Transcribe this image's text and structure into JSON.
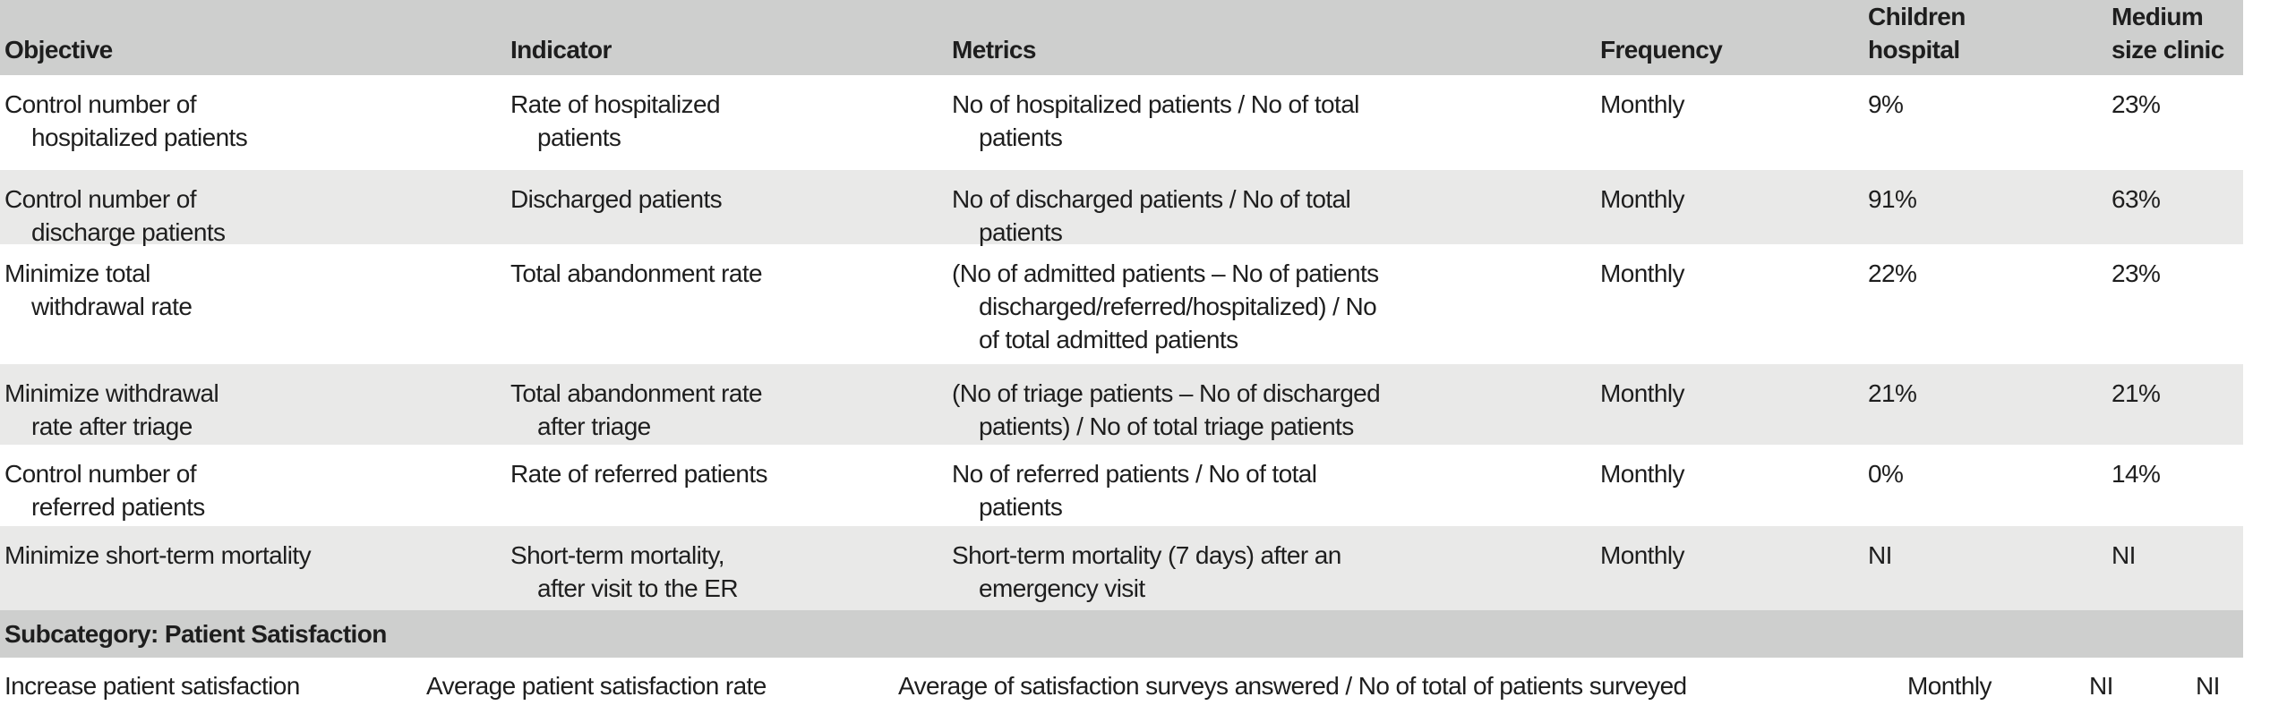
{
  "colors": {
    "header_band": "#cecfce",
    "zebra_band": "#e9e9e8",
    "row_white": "#ffffff",
    "text": "#1e1e1e"
  },
  "header": {
    "objective": "Objective",
    "indicator": "Indicator",
    "metrics": "Metrics",
    "frequency": "Frequency",
    "children_hospital": [
      "Children",
      "hospital"
    ],
    "medium_size_clinic": [
      "Medium",
      "size clinic"
    ]
  },
  "rows": [
    {
      "objective": [
        "Control number of",
        "hospitalized patients"
      ],
      "indicator": [
        "Rate of hospitalized",
        "patients"
      ],
      "metrics": [
        "No of hospitalized patients / No of total",
        "patients"
      ],
      "frequency": "Monthly",
      "children_hospital": "9%",
      "medium_size_clinic": "23%"
    },
    {
      "objective": [
        "Control number of",
        "discharge patients"
      ],
      "indicator": [
        "Discharged patients"
      ],
      "metrics": [
        "No of discharged patients / No of total",
        "patients"
      ],
      "frequency": "Monthly",
      "children_hospital": "91%",
      "medium_size_clinic": "63%"
    },
    {
      "objective": [
        "Minimize total",
        "withdrawal rate"
      ],
      "indicator": [
        "Total abandonment rate"
      ],
      "metrics": [
        "(No of admitted patients – No of patients",
        "discharged/referred/hospitalized) / No",
        "of total admitted patients"
      ],
      "frequency": "Monthly",
      "children_hospital": "22%",
      "medium_size_clinic": "23%"
    },
    {
      "objective": [
        "Minimize withdrawal",
        "rate after triage"
      ],
      "indicator": [
        "Total abandonment rate",
        "after triage"
      ],
      "metrics": [
        "(No of triage patients – No of discharged",
        "patients) / No of total triage patients"
      ],
      "frequency": "Monthly",
      "children_hospital": "21%",
      "medium_size_clinic": "21%"
    },
    {
      "objective": [
        "Control number of",
        "referred patients"
      ],
      "indicator": [
        "Rate of referred patients"
      ],
      "metrics": [
        "No of referred patients / No of total",
        "patients"
      ],
      "frequency": "Monthly",
      "children_hospital": "0%",
      "medium_size_clinic": "14%"
    },
    {
      "objective": [
        "Minimize short-term mortality"
      ],
      "indicator": [
        "Short-term mortality,",
        "after visit to the ER"
      ],
      "metrics": [
        "Short-term mortality (7 days) after an",
        "emergency visit"
      ],
      "frequency": "Monthly",
      "children_hospital": "NI",
      "medium_size_clinic": "NI"
    }
  ],
  "subcategory": {
    "label": "Subcategory: Patient Satisfaction"
  },
  "continuation_row": {
    "objective": "Increase patient satisfaction",
    "indicator": "Average patient satisfaction rate",
    "metrics": "Average of satisfaction surveys answered / No of total of patients surveyed",
    "frequency": "Monthly",
    "children_hospital": "NI",
    "medium_size_clinic": "NI"
  }
}
